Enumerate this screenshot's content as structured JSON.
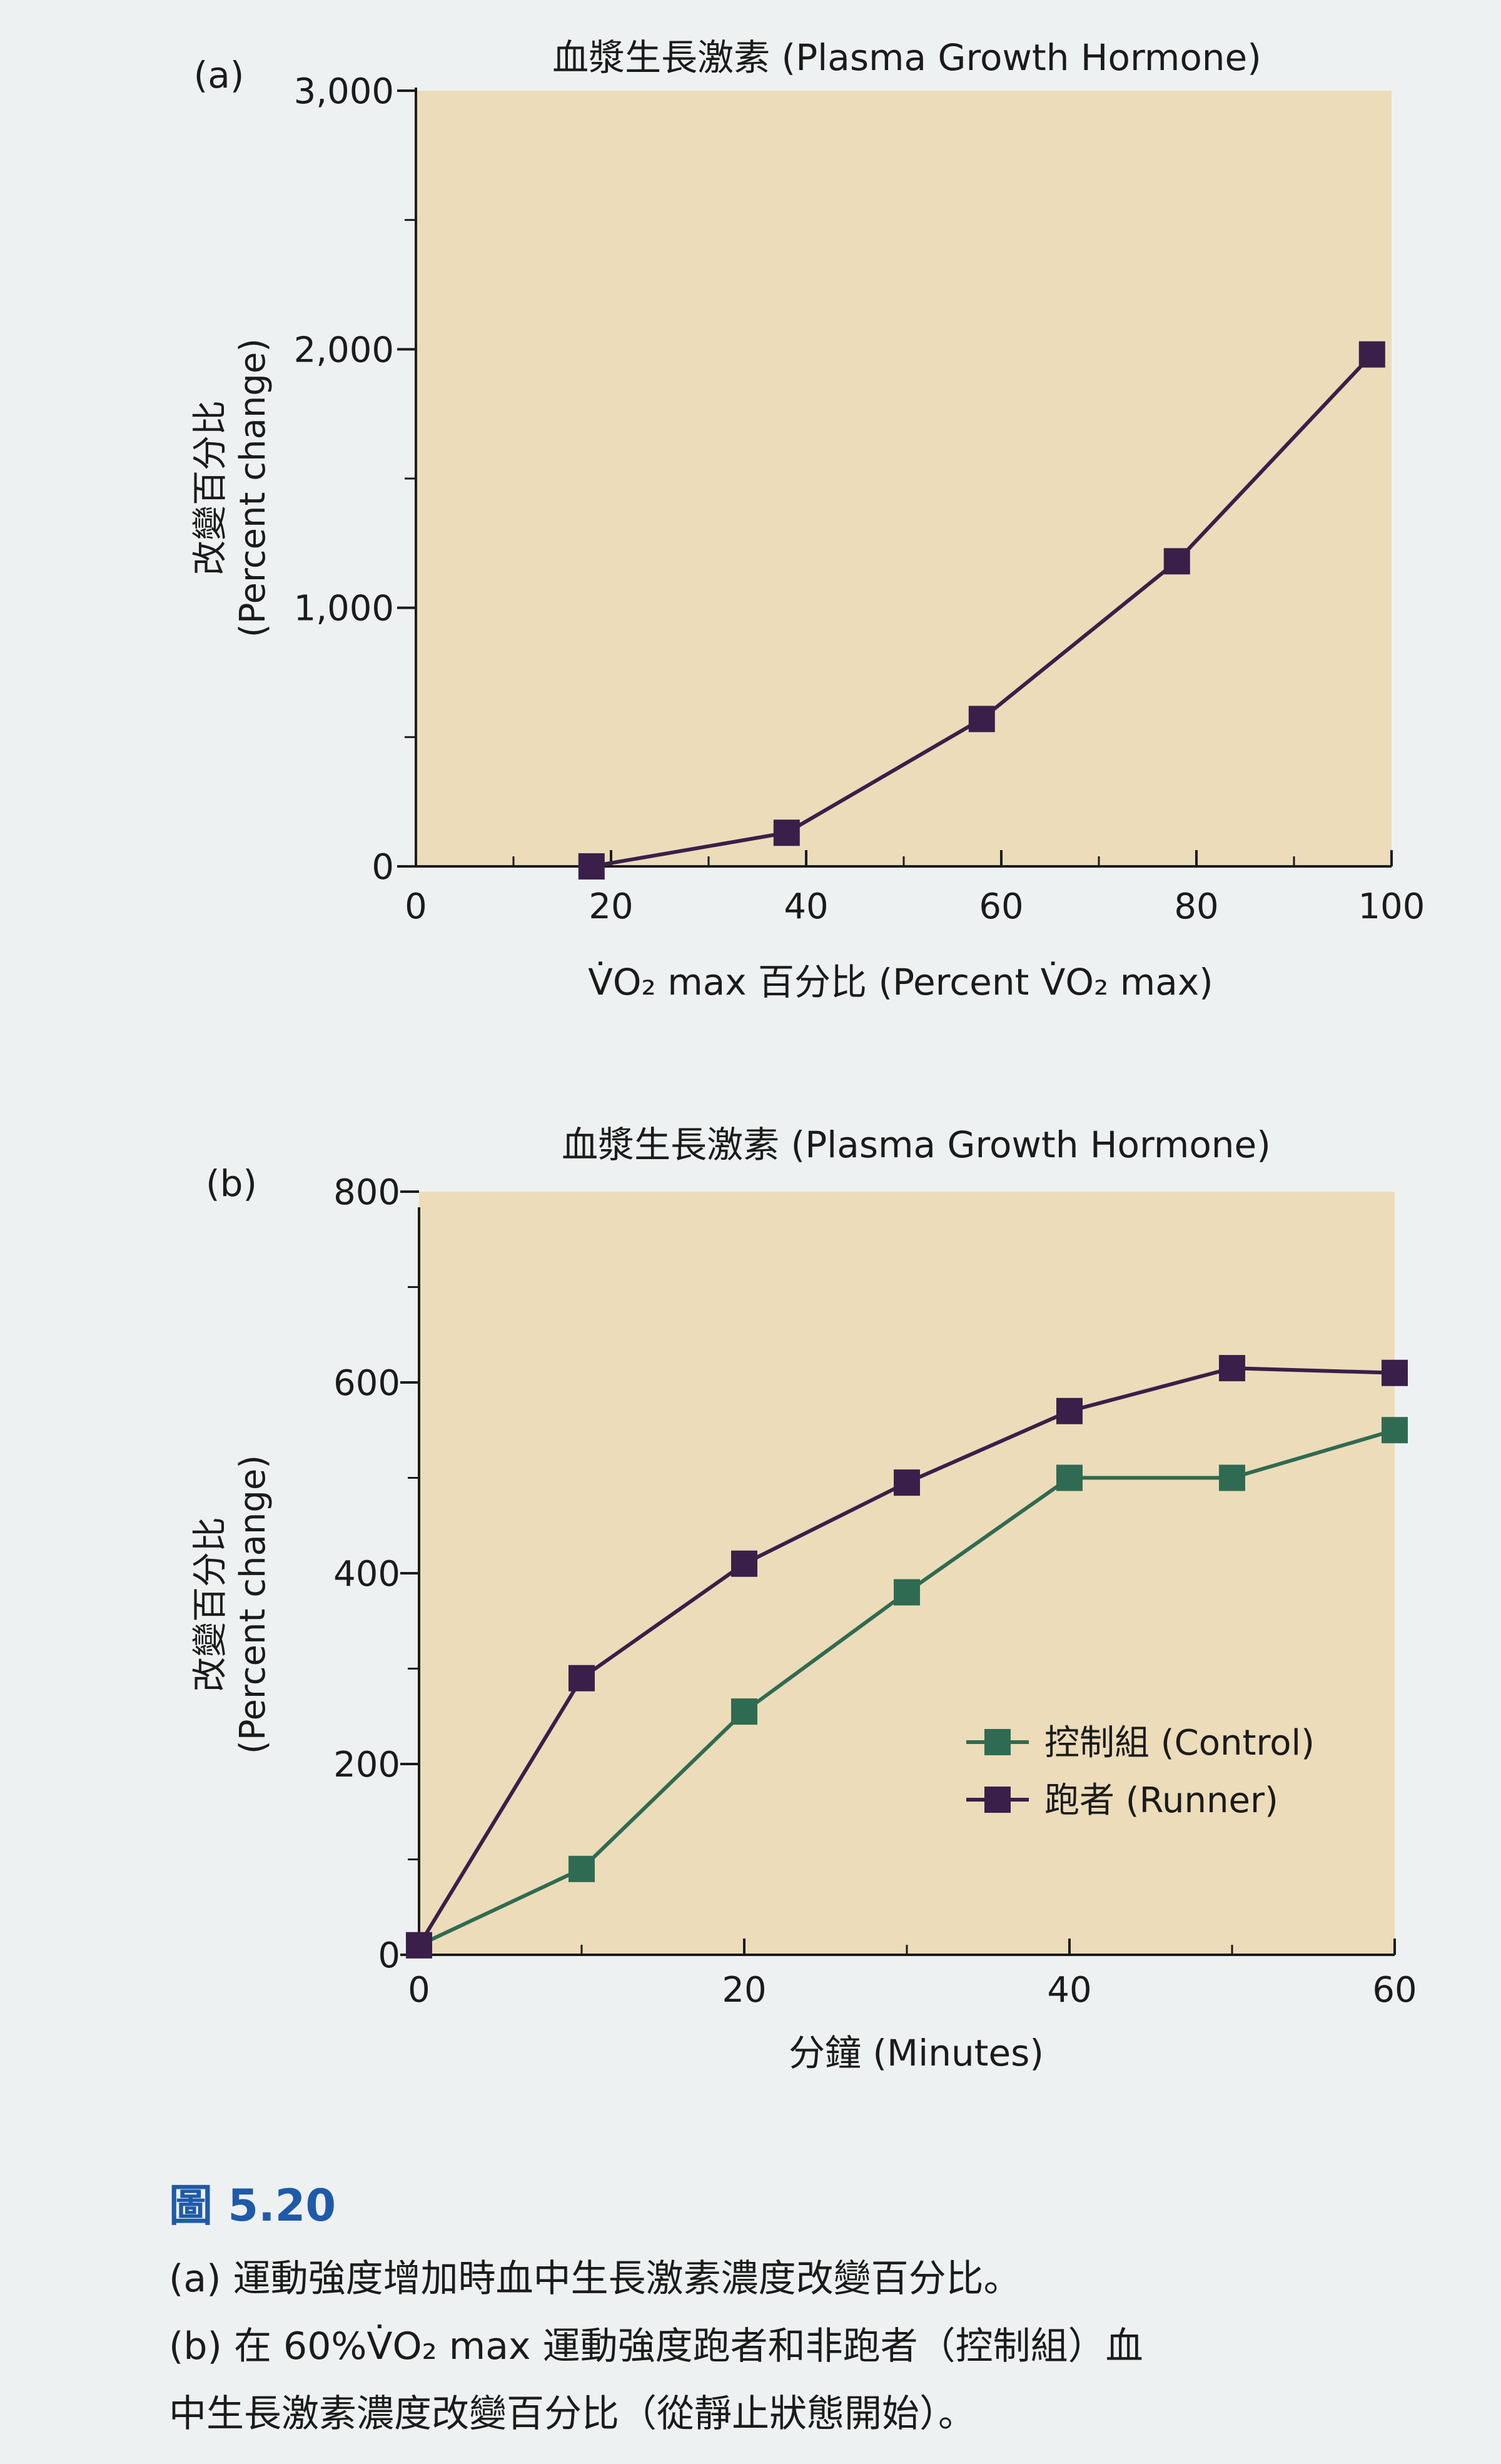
{
  "charts": [
    {
      "panel": "(a)",
      "title": "血漿生長激素 (Plasma Growth Hormone)",
      "ylabel": [
        "改變百分比",
        "(Percent change)"
      ],
      "xlabel": "V̇O₂ max 百分比 (Percent V̇O₂ max)",
      "y_tick_labels": [
        "0",
        "1,000",
        "2,000",
        "3,000"
      ],
      "x_tick_labels": [
        "0",
        "20",
        "40",
        "60",
        "80",
        "100"
      ]
    },
    {
      "panel": "(b)",
      "title": "血漿生長激素 (Plasma Growth Hormone)",
      "ylabel": [
        "改變百分比",
        "(Percent change)"
      ],
      "xlabel": "分鐘 (Minutes)",
      "y_tick_labels": [
        "0",
        "200",
        "400",
        "600",
        "800"
      ],
      "x_tick_labels": [
        "0",
        "20",
        "40",
        "60"
      ]
    }
  ],
  "chart_data": [
    {
      "type": "line",
      "title": "血漿生長激素 (Plasma Growth Hormone)",
      "xlabel": "V̇O₂ max 百分比 (Percent V̇O₂ max)",
      "ylabel": "改變百分比 (Percent change)",
      "xlim": [
        0,
        100
      ],
      "ylim": [
        0,
        3000
      ],
      "x_major_ticks": [
        0,
        20,
        40,
        60,
        80,
        100
      ],
      "x_minor_ticks": [
        10,
        30,
        50,
        70,
        90
      ],
      "y_major_ticks": [
        0,
        1000,
        2000,
        3000
      ],
      "y_minor_ticks": [
        500,
        1500,
        2500
      ],
      "grid": false,
      "series": [
        {
          "color": "#3a1f4a",
          "x": [
            18,
            38,
            58,
            78,
            98
          ],
          "y": [
            0,
            130,
            570,
            1180,
            1980
          ]
        }
      ]
    },
    {
      "type": "line",
      "title": "血漿生長激素 (Plasma Growth Hormone)",
      "xlabel": "分鐘 (Minutes)",
      "ylabel": "改變百分比 (Percent change)",
      "xlim": [
        0,
        60
      ],
      "ylim": [
        0,
        800
      ],
      "x_major_ticks": [
        0,
        20,
        40,
        60
      ],
      "x_minor_ticks": [
        10,
        30,
        50
      ],
      "y_major_ticks": [
        0,
        200,
        400,
        600,
        800
      ],
      "y_minor_ticks": [
        100,
        300,
        500,
        700
      ],
      "grid": false,
      "legend_position": "lower right",
      "series": [
        {
          "name": "控制組 (Control)",
          "color": "#2f6b52",
          "x": [
            0,
            10,
            20,
            30,
            40,
            50,
            60
          ],
          "y": [
            10,
            90,
            255,
            380,
            500,
            500,
            550
          ]
        },
        {
          "name": "跑者 (Runner)",
          "color": "#3a1f4a",
          "x": [
            0,
            10,
            20,
            30,
            40,
            50,
            60
          ],
          "y": [
            10,
            290,
            410,
            495,
            570,
            615,
            610
          ]
        }
      ]
    }
  ],
  "colors": {
    "plot_bg": "#ecdcb9",
    "page_bg": "#eef1f2",
    "axis": "#1b1b1b",
    "caption_blue": "#1f5aa8"
  },
  "caption": {
    "figure_number": "圖 5.20",
    "lines": [
      "(a) 運動強度增加時血中生長激素濃度改變百分比。",
      "(b) 在 60%V̇O₂ max 運動強度跑者和非跑者（控制組）血",
      "中生長激素濃度改變百分比（從靜止狀態開始）。"
    ]
  }
}
